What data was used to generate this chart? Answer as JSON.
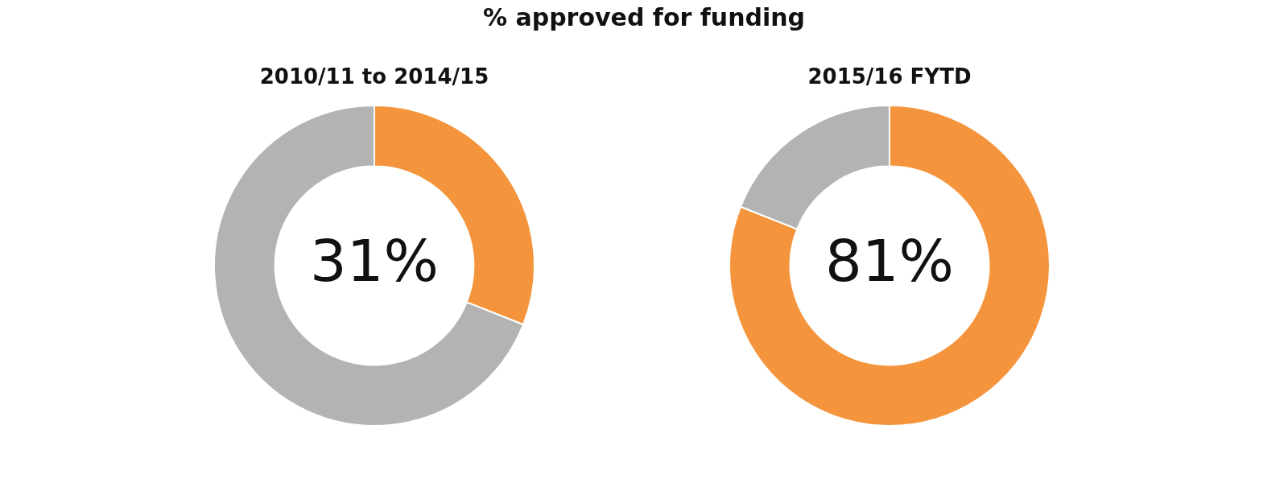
{
  "chart_data": [
    {
      "type": "donut",
      "title": "% approved for funding",
      "subtitle": "2010/11 to 2014/15",
      "categories": [
        null,
        null
      ],
      "values": [
        31,
        69
      ],
      "colors": [
        "#f4953d",
        "#b3b3b3"
      ],
      "annotations": [
        "31%"
      ]
    },
    {
      "type": "donut",
      "subtitle": "2015/16 FYTD",
      "categories": [
        null,
        null
      ],
      "values": [
        81,
        19
      ],
      "colors": [
        "#f4953d",
        "#b3b3b3"
      ],
      "annotations": [
        "81%"
      ]
    }
  ]
}
